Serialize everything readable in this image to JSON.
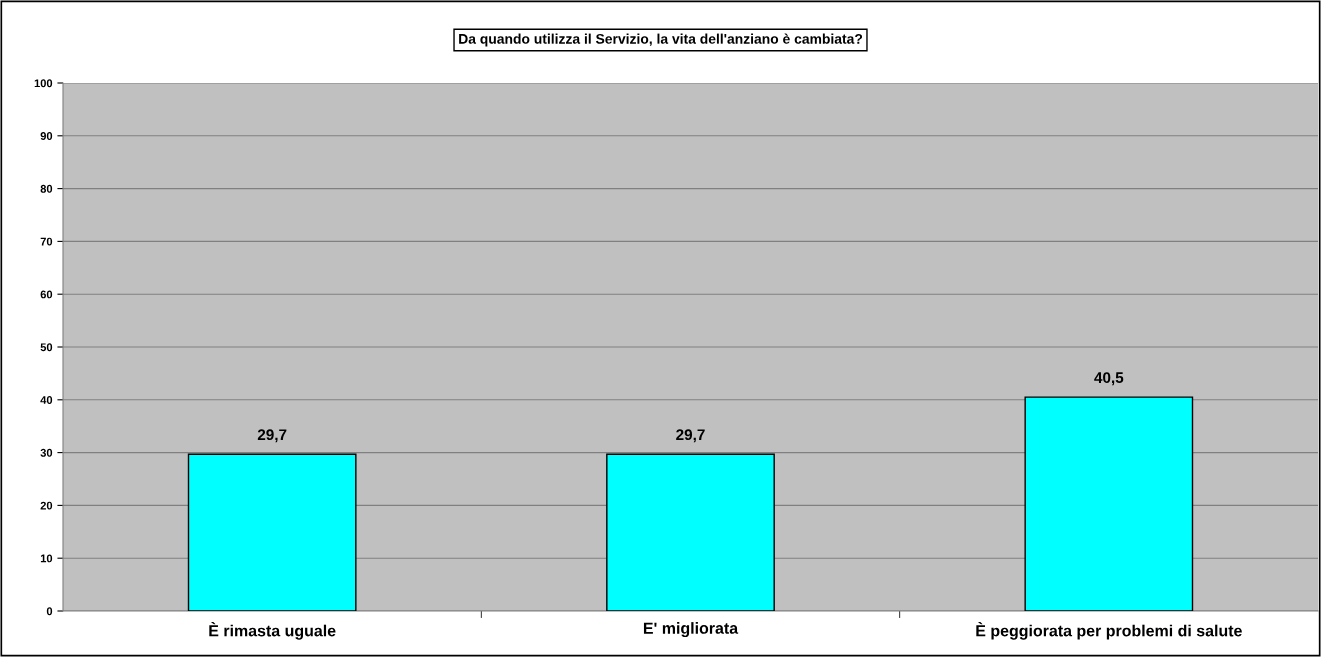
{
  "chart_data": {
    "type": "bar",
    "title": "Da quando utilizza il Servizio, la vita dell'anziano è cambiata?",
    "categories": [
      "È rimasta uguale",
      "E' migliorata",
      "È peggiorata per problemi di salute"
    ],
    "values": [
      29.7,
      29.7,
      40.5
    ],
    "value_labels": [
      "29,7",
      "29,7",
      "40,5"
    ],
    "color": "#00ffff",
    "ylim": [
      0,
      100
    ],
    "yticks": [
      0,
      10,
      20,
      30,
      40,
      50,
      60,
      70,
      80,
      90,
      100
    ],
    "grid": "y",
    "legend": false
  }
}
